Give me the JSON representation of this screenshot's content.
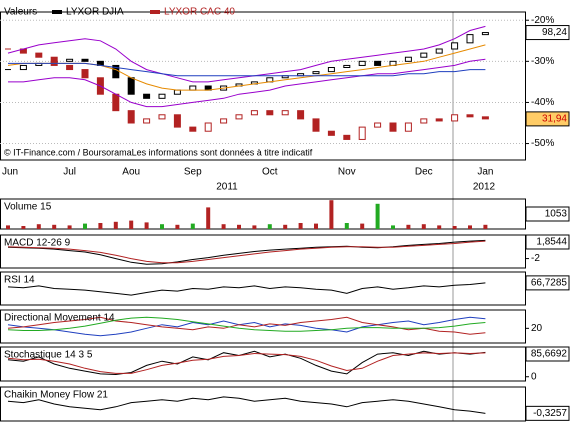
{
  "chart_data": [
    {
      "type": "line",
      "legend_title": "Valeurs",
      "annotation": "© IT-Finance.com / BoursoramaLes informations sont données à titre indicatif",
      "categories": [
        "Jun",
        null,
        null,
        null,
        "Jul",
        null,
        null,
        null,
        "Aou",
        null,
        null,
        null,
        "Sep",
        null,
        null,
        null,
        null,
        "Oct",
        null,
        null,
        null,
        null,
        "Nov",
        null,
        null,
        null,
        null,
        "Dec",
        null,
        null,
        null,
        "Jan"
      ],
      "year_labels": [
        "2011",
        "2012"
      ],
      "ylim": [
        -54,
        -18
      ],
      "yticks": [
        {
          "value": -20,
          "label": "-20%"
        },
        {
          "value": -30,
          "label": "-30%"
        },
        {
          "value": -40,
          "label": "-40%"
        },
        {
          "value": -50,
          "label": "-50%"
        }
      ],
      "grid": true,
      "series": [
        {
          "name": "LYXOR DJIA",
          "color": "#000000",
          "style": "candle",
          "badge": "98,24",
          "values": [
            -32,
            -31,
            -30.5,
            -30,
            -29.5,
            -30,
            -31,
            -34,
            -38,
            -39,
            -38,
            -37,
            -36,
            -37,
            -36,
            -35.5,
            -35,
            -34,
            -33.5,
            -33,
            -32.5,
            -31.5,
            -31,
            -30,
            -31,
            -30,
            -29,
            -28,
            -27,
            -25.5,
            -23.5,
            -23
          ]
        },
        {
          "name": "LYXOR CAC 40",
          "color": "#b22222",
          "style": "candle",
          "badge": "31,94",
          "badge_color": "#cc0000",
          "badge_fill": "#ffcc66",
          "values": [
            -27,
            -28,
            -29,
            -31,
            -32,
            -34,
            -38,
            -42,
            -45,
            -44,
            -43,
            -46,
            -47,
            -45,
            -44,
            -43,
            -42,
            -43,
            -42,
            -44,
            -47,
            -48,
            -49,
            -46,
            -45,
            -47,
            -45,
            -44,
            -44.5,
            -43,
            -43.5,
            -44
          ]
        },
        {
          "color": "#9900cc",
          "values": [
            -28,
            -27,
            -26,
            -25.5,
            -25,
            -24.5,
            -25,
            -27,
            -30,
            -32,
            -33,
            -34,
            -35,
            -35,
            -34.5,
            -34,
            -33.5,
            -33,
            -32.5,
            -32,
            -31,
            -30,
            -29.5,
            -29,
            -28.5,
            -28,
            -27.5,
            -27,
            -26,
            -24.5,
            -22.5,
            -21.5
          ]
        },
        {
          "color": "#9900cc",
          "values": [
            -35,
            -35,
            -34.5,
            -34,
            -34,
            -34.5,
            -36,
            -38,
            -40,
            -41,
            -41,
            -40.5,
            -40,
            -39.5,
            -39,
            -38,
            -37.5,
            -37,
            -36,
            -35.5,
            -35,
            -34.5,
            -34,
            -33.5,
            -33,
            -33,
            -32.5,
            -32,
            -31.5,
            -31,
            -30,
            -29.5
          ]
        },
        {
          "color": "#e68a00",
          "values": [
            -31,
            -30.5,
            -30.5,
            -30.5,
            -30.5,
            -30.5,
            -31,
            -32,
            -34,
            -35.5,
            -36.5,
            -37,
            -37,
            -37,
            -36.5,
            -36,
            -35.5,
            -35,
            -34.5,
            -34,
            -33.5,
            -33,
            -32.5,
            -32,
            -31.5,
            -31,
            -30.5,
            -30,
            -29,
            -28,
            -27,
            -26
          ]
        },
        {
          "color": "#1f3fbf",
          "values": [
            -30.5,
            -30.5,
            -30.5,
            -30.5,
            -30.5,
            -30.5,
            -31,
            -31.5,
            -32,
            -32.5,
            -33,
            -33.5,
            -33.5,
            -33.5,
            -33.5,
            -33.5,
            -33.5,
            -33.5,
            -33.5,
            -33.5,
            -33.5,
            -33.5,
            -33.5,
            -33.5,
            -33.5,
            -33.5,
            -33,
            -33,
            -32.5,
            -32.5,
            -32,
            -32
          ]
        }
      ]
    },
    {
      "type": "bar",
      "title": "Volume 15",
      "badge": "1053",
      "ylim": [
        0,
        2500
      ],
      "values": [
        300,
        250,
        400,
        350,
        300,
        450,
        500,
        600,
        700,
        550,
        400,
        350,
        450,
        1800,
        400,
        350,
        300,
        400,
        350,
        500,
        450,
        2400,
        500,
        450,
        2100,
        300,
        350,
        400,
        300,
        250,
        300,
        350
      ],
      "colors": [
        "#b22222",
        "#b22222",
        "#b22222",
        "#b22222",
        "#b22222",
        "#22aa22",
        "#b22222",
        "#b22222",
        "#b22222",
        "#b22222",
        "#22aa22",
        "#b22222",
        "#22aa22",
        "#b22222",
        "#b22222",
        "#b22222",
        "#b22222",
        "#22aa22",
        "#b22222",
        "#b22222",
        "#b22222",
        "#b22222",
        "#22aa22",
        "#b22222",
        "#22aa22",
        "#22aa22",
        "#b22222",
        "#b22222",
        "#b22222",
        "#b22222",
        "#b22222",
        "#b22222"
      ]
    },
    {
      "type": "line",
      "title": "MACD 12-26 9",
      "ylim": [
        -4,
        3
      ],
      "yticks": [
        -2
      ],
      "series": [
        {
          "color": "#000000",
          "badge": "1,8544",
          "values": [
            0.4,
            0.3,
            0.2,
            0,
            -0.3,
            -0.6,
            -1.2,
            -2,
            -2.8,
            -3.2,
            -3.1,
            -2.7,
            -2.2,
            -1.8,
            -1.3,
            -0.9,
            -0.5,
            -0.2,
            0,
            0.2,
            0.4,
            0.5,
            0.6,
            0.4,
            0.3,
            0.5,
            0.8,
            1,
            1.2,
            1.5,
            1.7,
            1.85
          ]
        },
        {
          "color": "#b22222",
          "values": [
            0.5,
            0.4,
            0.3,
            0.2,
            0,
            -0.3,
            -0.7,
            -1.3,
            -2,
            -2.6,
            -2.9,
            -2.9,
            -2.6,
            -2.2,
            -1.8,
            -1.4,
            -1,
            -0.6,
            -0.3,
            0,
            0.2,
            0.4,
            0.5,
            0.5,
            0.4,
            0.4,
            0.6,
            0.8,
            1,
            1.2,
            1.5,
            1.7
          ]
        }
      ]
    },
    {
      "type": "line",
      "title": "RSI 14",
      "ylim": [
        0,
        100
      ],
      "series": [
        {
          "color": "#000000",
          "badge": "66,7285",
          "values": [
            55,
            52,
            58,
            50,
            48,
            45,
            40,
            35,
            30,
            38,
            45,
            42,
            50,
            48,
            55,
            52,
            58,
            50,
            55,
            52,
            48,
            45,
            35,
            50,
            55,
            48,
            52,
            58,
            55,
            60,
            62,
            67
          ]
        }
      ]
    },
    {
      "type": "line",
      "title": "Directional Movement 14",
      "ylim": [
        0,
        45
      ],
      "yticks": [
        20
      ],
      "series": [
        {
          "color": "#1f3fbf",
          "values": [
            25,
            22,
            20,
            18,
            15,
            12,
            10,
            12,
            15,
            20,
            25,
            22,
            28,
            25,
            30,
            25,
            28,
            22,
            26,
            24,
            20,
            18,
            15,
            22,
            25,
            28,
            30,
            25,
            28,
            32,
            35,
            33
          ]
        },
        {
          "color": "#b22222",
          "values": [
            20,
            22,
            25,
            28,
            30,
            32,
            35,
            30,
            28,
            25,
            22,
            20,
            18,
            22,
            20,
            25,
            22,
            26,
            24,
            28,
            30,
            32,
            35,
            28,
            25,
            22,
            18,
            20,
            16,
            15,
            12,
            14
          ]
        },
        {
          "color": "#22aa22",
          "values": [
            18,
            17,
            17,
            18,
            20,
            23,
            27,
            31,
            34,
            35,
            34,
            32,
            29,
            26,
            23,
            20,
            18,
            17,
            16,
            16,
            17,
            18,
            20,
            21,
            21,
            20,
            20,
            20,
            21,
            23,
            26,
            28
          ]
        }
      ]
    },
    {
      "type": "line",
      "title": "Stochastique 14 3 5",
      "ylim": [
        -15,
        105
      ],
      "yticks": [
        0
      ],
      "series": [
        {
          "color": "#000000",
          "badge": "85,6692",
          "values": [
            60,
            55,
            70,
            45,
            30,
            20,
            10,
            8,
            15,
            40,
            55,
            45,
            70,
            60,
            85,
            75,
            90,
            70,
            80,
            65,
            40,
            20,
            10,
            50,
            80,
            85,
            75,
            90,
            80,
            85,
            80,
            86
          ]
        },
        {
          "color": "#b22222",
          "values": [
            65,
            60,
            62,
            55,
            45,
            30,
            18,
            12,
            12,
            25,
            40,
            48,
            58,
            62,
            72,
            75,
            82,
            80,
            78,
            72,
            58,
            38,
            22,
            30,
            55,
            75,
            80,
            84,
            82,
            84,
            82,
            84
          ]
        }
      ]
    },
    {
      "type": "line",
      "title": "Chaikin Money Flow 21",
      "ylim": [
        -0.6,
        0.6
      ],
      "series": [
        {
          "color": "#000000",
          "badge": "-0,3257",
          "values": [
            0.1,
            0.05,
            0.15,
            0,
            -0.1,
            -0.15,
            -0.2,
            -0.1,
            0.05,
            0.1,
            0.15,
            0.1,
            0.2,
            0.15,
            0.25,
            0.2,
            0.1,
            0.15,
            0.2,
            0.1,
            0.05,
            0,
            -0.1,
            0.05,
            0.1,
            0.15,
            0.1,
            0,
            -0.1,
            -0.2,
            -0.25,
            -0.33
          ]
        }
      ]
    }
  ]
}
